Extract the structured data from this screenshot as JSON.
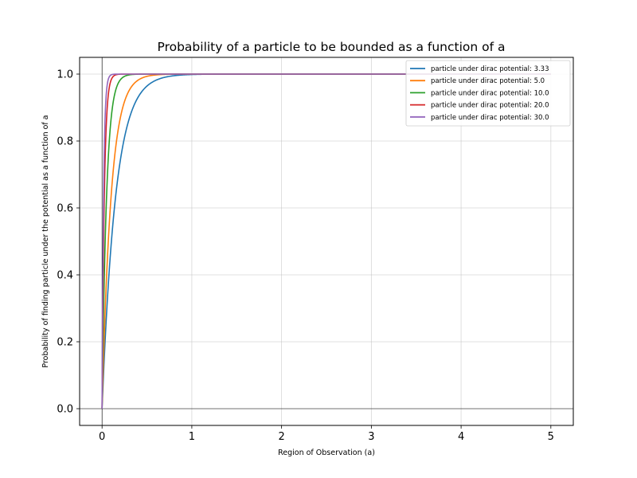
{
  "chart_data": {
    "type": "line",
    "title": "Probability of a particle to be bounded as a function of a",
    "xlabel": "Region of Observation (a)",
    "ylabel": "Probability of finding particle under the potential as a function of a",
    "xlim": [
      -0.25,
      5.25
    ],
    "ylim": [
      -0.05,
      1.05
    ],
    "x_range": [
      0,
      5
    ],
    "xticks": [
      0,
      1,
      2,
      3,
      4,
      5
    ],
    "xtick_labels": [
      "0",
      "1",
      "2",
      "3",
      "4",
      "5"
    ],
    "yticks": [
      0.0,
      0.2,
      0.4,
      0.6,
      0.8,
      1.0
    ],
    "ytick_labels": [
      "0.0",
      "0.2",
      "0.4",
      "0.6",
      "0.8",
      "1.0"
    ],
    "grid": true,
    "legend_position": "top-right",
    "formula": "1 - exp(-2 * alpha * a)",
    "series": [
      {
        "name": "particle under dirac potential: 3.33",
        "alpha": 3.33,
        "color": "#1f77b4"
      },
      {
        "name": "particle under dirac potential: 5.0",
        "alpha": 5.0,
        "color": "#ff7f0e"
      },
      {
        "name": "particle under dirac potential: 10.0",
        "alpha": 10.0,
        "color": "#2ca02c"
      },
      {
        "name": "particle under dirac potential: 20.0",
        "alpha": 20.0,
        "color": "#d62728"
      },
      {
        "name": "particle under dirac potential: 30.0",
        "alpha": 30.0,
        "color": "#9467bd"
      }
    ]
  }
}
